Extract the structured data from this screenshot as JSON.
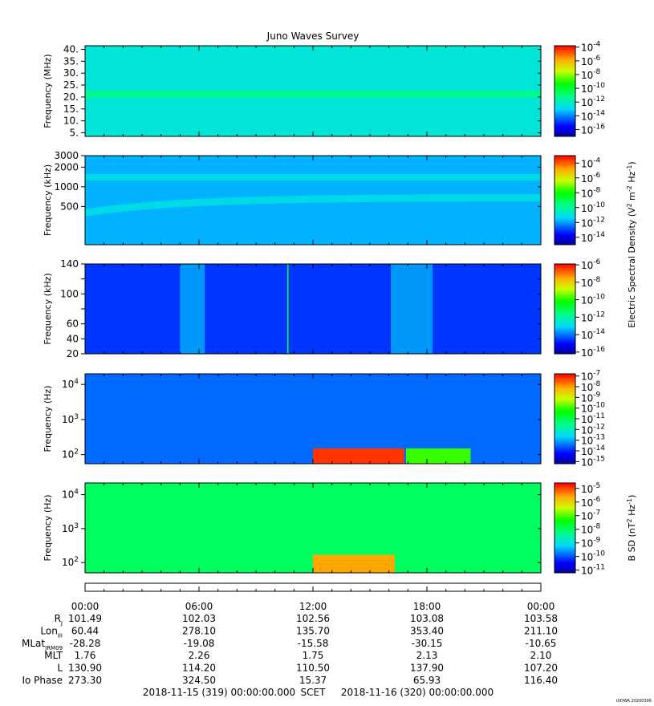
{
  "title": "Juno Waves Survey",
  "stamp": "UIOWA 20200306",
  "shared_colorbar_label_html": "Electric Spectral Density (V<sup>2</sup> m<sup>-2</sup> Hz<sup>-1</sup>)",
  "shared_colorbar_label": "Electric Spectral Density (V2 m-2 Hz-1)",
  "chart_data": {
    "type": "heatmap",
    "time_axis": {
      "ticks": [
        "00:00",
        "06:00",
        "12:00",
        "18:00",
        "00:00"
      ],
      "range_hours": [
        0,
        24
      ]
    },
    "panels": [
      {
        "id": "p1",
        "ylabel": "Frequency (MHz)",
        "yscale": "linear",
        "ylim": [
          3.5,
          41.5
        ],
        "yticks": [
          5,
          10,
          15,
          20,
          25,
          30,
          35,
          40
        ],
        "ytick_labels": [
          "5.",
          "10.",
          "15.",
          "20.",
          "25.",
          "30.",
          "35.",
          "40."
        ],
        "cbar_ticks": [
          {
            "exp": "-4",
            "v": -4
          },
          {
            "exp": "-6",
            "v": -6
          },
          {
            "exp": "-8",
            "v": -8
          },
          {
            "exp": "-10",
            "v": -10
          },
          {
            "exp": "-12",
            "v": -12
          },
          {
            "exp": "-14",
            "v": -14
          },
          {
            "exp": "-16",
            "v": -16
          }
        ],
        "cbar_range": [
          -17,
          -3.8
        ],
        "features": [
          {
            "kind": "band",
            "f": 21.2,
            "level": -11
          }
        ],
        "background_level": -12.4
      },
      {
        "id": "p2",
        "ylabel": "Frequency (kHz)",
        "yscale": "log",
        "ylim": [
          130,
          3000
        ],
        "yticks": [
          500,
          1000,
          2000,
          3000
        ],
        "ytick_labels": [
          "500",
          "1000",
          "2000",
          "3000"
        ],
        "cbar_ticks": [
          {
            "exp": "-4",
            "v": -4
          },
          {
            "exp": "-6",
            "v": -6
          },
          {
            "exp": "-8",
            "v": -8
          },
          {
            "exp": "-10",
            "v": -10
          },
          {
            "exp": "-12",
            "v": -12
          },
          {
            "exp": "-14",
            "v": -14
          }
        ],
        "cbar_range": [
          -15,
          -3
        ],
        "features": [
          {
            "kind": "band",
            "f": 1400,
            "level": -11
          },
          {
            "kind": "rising_band",
            "f_start": 400,
            "f_end": 680,
            "level": -11
          }
        ],
        "background_level": -11.8
      },
      {
        "id": "p3",
        "ylabel": "Frequency (kHz)",
        "yscale": "linear",
        "ylim": [
          20,
          140
        ],
        "yticks": [
          20,
          40,
          60,
          80,
          100,
          120,
          140
        ],
        "ytick_labels": [
          "20",
          "40",
          "60",
          "",
          "100",
          "",
          "140"
        ],
        "cbar_ticks": [
          {
            "exp": "-6",
            "v": -6
          },
          {
            "exp": "-8",
            "v": -8
          },
          {
            "exp": "-10",
            "v": -10
          },
          {
            "exp": "-12",
            "v": -12
          },
          {
            "exp": "-14",
            "v": -14
          },
          {
            "exp": "-16",
            "v": -16
          }
        ],
        "cbar_range": [
          -16.2,
          -5.9
        ],
        "features": [
          {
            "kind": "burst",
            "t": [
              5.0,
              6.3
            ],
            "level": -13
          },
          {
            "kind": "burst",
            "t": [
              16.1,
              18.3
            ],
            "level": -13
          },
          {
            "kind": "spike",
            "t": 10.65,
            "level": -11
          }
        ],
        "background_level": -14.6
      },
      {
        "id": "p4",
        "ylabel": "Frequency (Hz)",
        "yscale": "log",
        "ylim": [
          55,
          20000
        ],
        "yticks": [
          100,
          1000,
          10000
        ],
        "ytick_labels": [
          "10^2",
          "10^3",
          "10^4"
        ],
        "cbar_ticks": [
          {
            "exp": "-7",
            "v": -7
          },
          {
            "exp": "-8",
            "v": -8
          },
          {
            "exp": "-9",
            "v": -9
          },
          {
            "exp": "-10",
            "v": -10
          },
          {
            "exp": "-11",
            "v": -11
          },
          {
            "exp": "-12",
            "v": -12
          },
          {
            "exp": "-13",
            "v": -13
          },
          {
            "exp": "-14",
            "v": -14
          },
          {
            "exp": "-15",
            "v": -15
          }
        ],
        "cbar_range": [
          -15.2,
          -6.8
        ],
        "features": [
          {
            "kind": "intense_low_band",
            "t": [
              12.0,
              16.8
            ],
            "f_max": 150,
            "level": -7.2
          },
          {
            "kind": "gap",
            "t": [
              16.9,
              20.3
            ],
            "level": -10
          }
        ],
        "background_level": -13.5
      },
      {
        "id": "p5",
        "ylabel": "Frequency (Hz)",
        "yscale": "log",
        "ylim": [
          50,
          22000
        ],
        "yticks": [
          100,
          1000,
          10000
        ],
        "ytick_labels": [
          "10^2",
          "10^3",
          "10^4"
        ],
        "cbar_ticks": [
          {
            "exp": "-5",
            "v": -5
          },
          {
            "exp": "-6",
            "v": -6
          },
          {
            "exp": "-7",
            "v": -7
          },
          {
            "exp": "-8",
            "v": -8
          },
          {
            "exp": "-9",
            "v": -9
          },
          {
            "exp": "-10",
            "v": -10
          },
          {
            "exp": "-11",
            "v": -11
          }
        ],
        "cbar_range": [
          -11.2,
          -4.6
        ],
        "cbar_label_html": "B SD (nT<sup>2</sup> Hz<sup>-1</sup>)",
        "cbar_label": "B SD (nT2 Hz-1)",
        "features": [
          {
            "kind": "intense_low_band",
            "t": [
              12.0,
              16.3
            ],
            "f_max": 170,
            "level": -5.6
          }
        ],
        "background_level": -8
      }
    ]
  },
  "ephemeris": {
    "labels": [
      {
        "main": "R",
        "sub": "J"
      },
      {
        "main": "Lon",
        "sub": "III"
      },
      {
        "main": "MLat",
        "sub": "JRM09"
      },
      {
        "main": "MLT",
        "sub": ""
      },
      {
        "main": "L",
        "sub": ""
      },
      {
        "main": "Io Phase",
        "sub": ""
      }
    ],
    "rows": [
      [
        "101.49",
        "102.03",
        "102.56",
        "103.08",
        "103.58"
      ],
      [
        "60.44",
        "278.10",
        "135.70",
        "353.40",
        "211.10"
      ],
      [
        "-28.28",
        "-19.08",
        "-15.58",
        "-30.15",
        "-10.65"
      ],
      [
        "1.76",
        "2.26",
        "1.75",
        "2.13",
        "2.10"
      ],
      [
        "130.90",
        "114.20",
        "110.50",
        "137.90",
        "107.20"
      ],
      [
        "273.30",
        "324.50",
        "15.37",
        "65.93",
        "116.40"
      ]
    ]
  },
  "footer": {
    "start": "2018-11-15 (319) 00:00:00.000",
    "scet": "SCET",
    "end": "2018-11-16 (320) 00:00:00.000"
  }
}
